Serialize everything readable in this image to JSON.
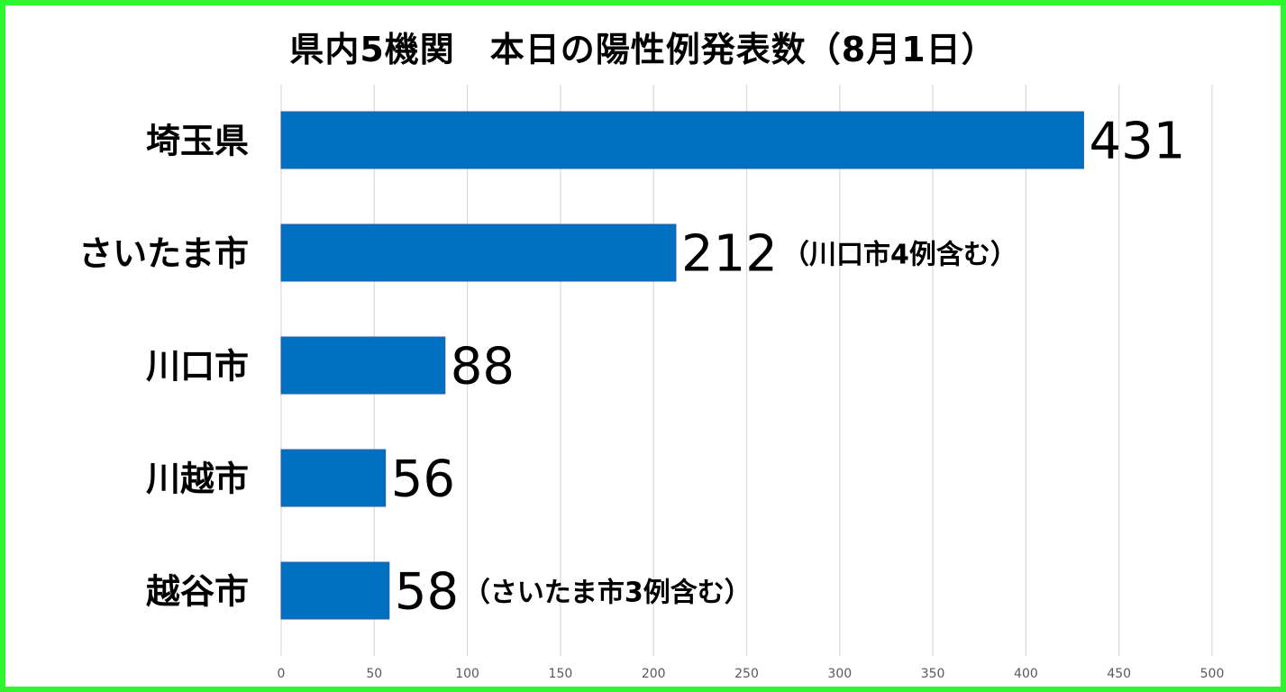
{
  "chart_data": {
    "type": "bar",
    "orientation": "horizontal",
    "title": "県内5機関　本日の陽性例発表数（8月1日）",
    "categories": [
      "埼玉県",
      "さいたま市",
      "川口市",
      "川越市",
      "越谷市"
    ],
    "values": [
      431,
      212,
      88,
      56,
      58
    ],
    "annotations": [
      "",
      "（川口市4例含む）",
      "",
      "",
      "（さいたま市3例含む）"
    ],
    "xlim": [
      0,
      500
    ],
    "xticks": [
      0,
      50,
      100,
      150,
      200,
      250,
      300,
      350,
      400,
      450,
      500
    ],
    "grid": true,
    "legend": "none",
    "colors": {
      "bar": "#0070c0",
      "bar_edge": "#2e5fa3",
      "grid": "#d9d9d9",
      "border": "#2ef52e"
    }
  }
}
